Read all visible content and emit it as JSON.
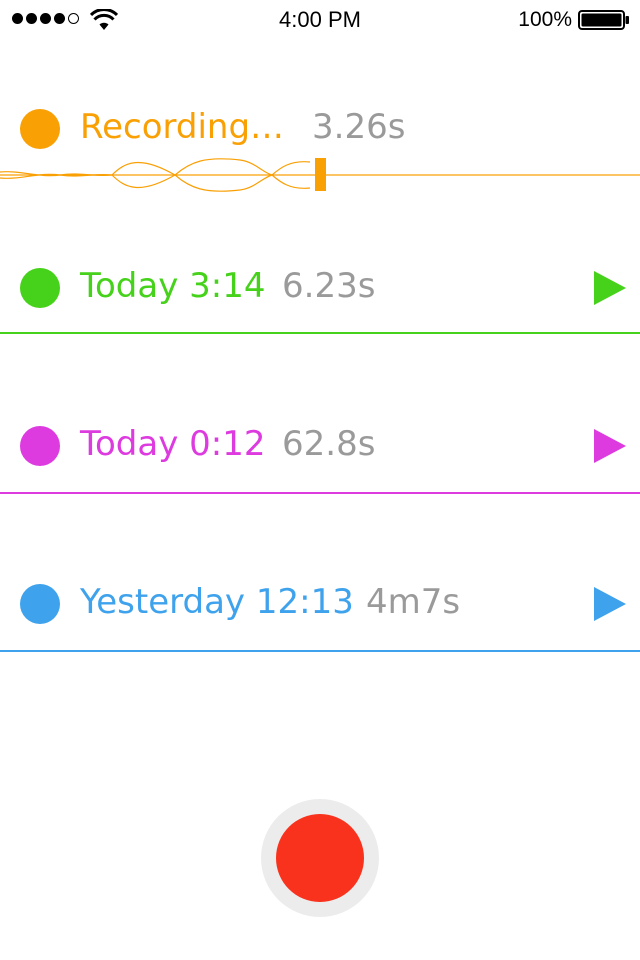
{
  "status_bar": {
    "time": "4:00 PM",
    "battery": "100%"
  },
  "recording": {
    "label": "Recording…",
    "duration": "3.26s",
    "color": "#f9a005"
  },
  "recordings": [
    {
      "label": "Today 3:14",
      "duration": "6.23s",
      "color": "#46d21a"
    },
    {
      "label": "Today 0:12",
      "duration": "62.8s",
      "color": "#dd3ae0"
    },
    {
      "label": "Yesterday 12:13",
      "duration": "4m7s",
      "color": "#3fa2ec"
    }
  ],
  "icons": {
    "play": "play-icon",
    "record": "record-icon"
  },
  "colors": {
    "record_button": "#f8321c",
    "duration_text": "#9a9a9a"
  }
}
